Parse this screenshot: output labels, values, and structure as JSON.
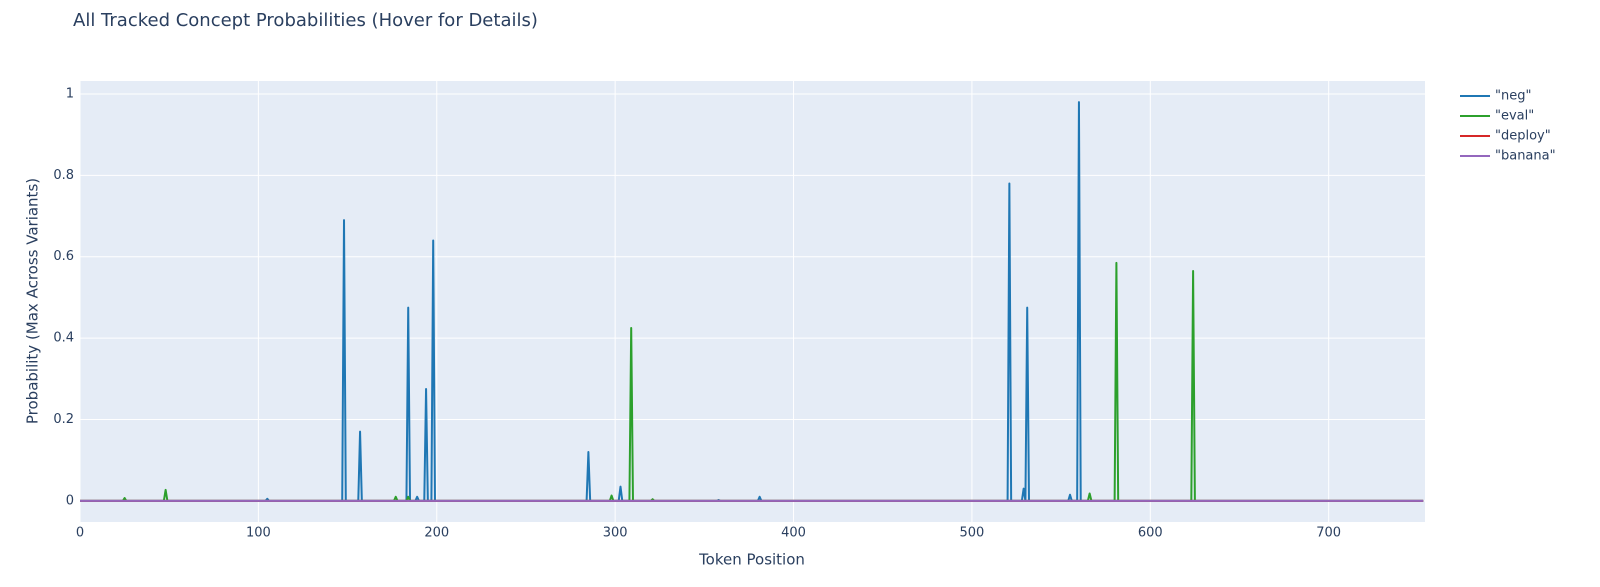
{
  "chart_data": {
    "type": "line",
    "title": "All Tracked Concept Probabilities (Hover for Details)",
    "x_label": "Token Position",
    "y_label": "Probability (Max Across Variants)",
    "xlim": [
      0,
      754
    ],
    "ylim": [
      -0.052,
      1.032
    ],
    "xticks": [
      0,
      100,
      200,
      300,
      400,
      500,
      600,
      700
    ],
    "yticks": [
      0,
      0.2,
      0.4,
      0.6,
      0.8,
      1
    ],
    "grid": true,
    "series": [
      {
        "name": "\"neg\"",
        "color": "#1f77b4",
        "x": [
          0,
          104,
          105,
          106,
          147,
          148,
          149,
          156,
          157,
          158,
          183,
          184,
          185,
          188,
          189,
          190,
          193,
          194,
          195,
          197,
          198,
          199,
          284,
          285,
          286,
          302,
          303,
          304,
          357,
          358,
          359,
          380,
          381,
          382,
          520,
          521,
          522,
          528,
          529,
          530,
          531,
          532,
          554,
          555,
          556,
          559,
          560,
          561,
          753
        ],
        "values": [
          0,
          0,
          0.005,
          0,
          0,
          0.69,
          0,
          0,
          0.17,
          0,
          0,
          0.475,
          0,
          0,
          0.01,
          0,
          0,
          0.275,
          0,
          0,
          0.64,
          0,
          0,
          0.12,
          0,
          0,
          0.035,
          0,
          0,
          0.002,
          0,
          0,
          0.01,
          0,
          0,
          0.78,
          0,
          0,
          0.03,
          0,
          0.475,
          0,
          0,
          0.015,
          0,
          0,
          0.98,
          0,
          0
        ]
      },
      {
        "name": "\"eval\"",
        "color": "#2ca02c",
        "x": [
          0,
          24,
          25,
          26,
          47,
          48,
          49,
          176,
          177,
          178,
          183,
          184,
          185,
          297,
          298,
          299,
          308,
          309,
          310,
          320,
          321,
          322,
          565,
          566,
          567,
          580,
          581,
          582,
          623,
          624,
          625,
          753
        ],
        "values": [
          0,
          0,
          0.007,
          0,
          0,
          0.027,
          0,
          0,
          0.01,
          0,
          0,
          0.01,
          0,
          0,
          0.013,
          0,
          0,
          0.425,
          0,
          0,
          0.004,
          0,
          0,
          0.018,
          0,
          0,
          0.585,
          0,
          0,
          0.565,
          0,
          0
        ]
      },
      {
        "name": "\"deploy\"",
        "color": "#d62728",
        "x": [
          0,
          753
        ],
        "values": [
          0,
          0
        ]
      },
      {
        "name": "\"banana\"",
        "color": "#9467bd",
        "x": [
          0,
          753
        ],
        "values": [
          0,
          0
        ]
      }
    ]
  }
}
